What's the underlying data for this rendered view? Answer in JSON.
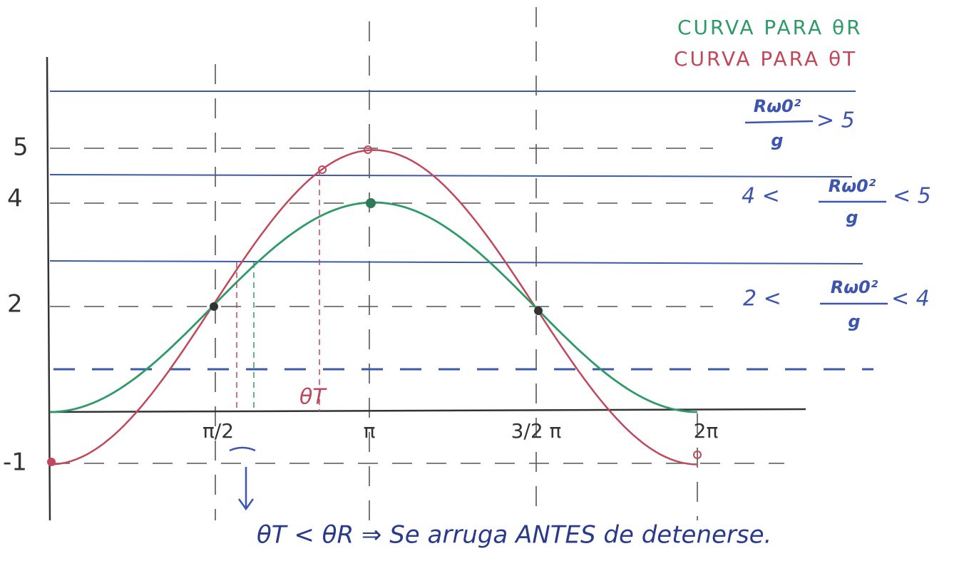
{
  "legend": {
    "green": "CURVA PARA θR",
    "red": "CURVA PARA θT"
  },
  "y_labels": [
    "5",
    "4",
    "2",
    "-1"
  ],
  "x_labels": [
    "π/2",
    "π",
    "3/2 π",
    "2π"
  ],
  "regions": [
    {
      "numerator": "Rω0²",
      "denominator": "g",
      "right": "> 5"
    },
    {
      "left": "4 <",
      "numerator": "Rω0²",
      "denominator": "g",
      "right": "< 5"
    },
    {
      "left": "2 <",
      "numerator": "Rω0²",
      "denominator": "g",
      "right": "< 4"
    }
  ],
  "theta_t_label": "θT",
  "conclusion": "θT < θR ⇒ Se arruga ANTES de detenerse."
}
